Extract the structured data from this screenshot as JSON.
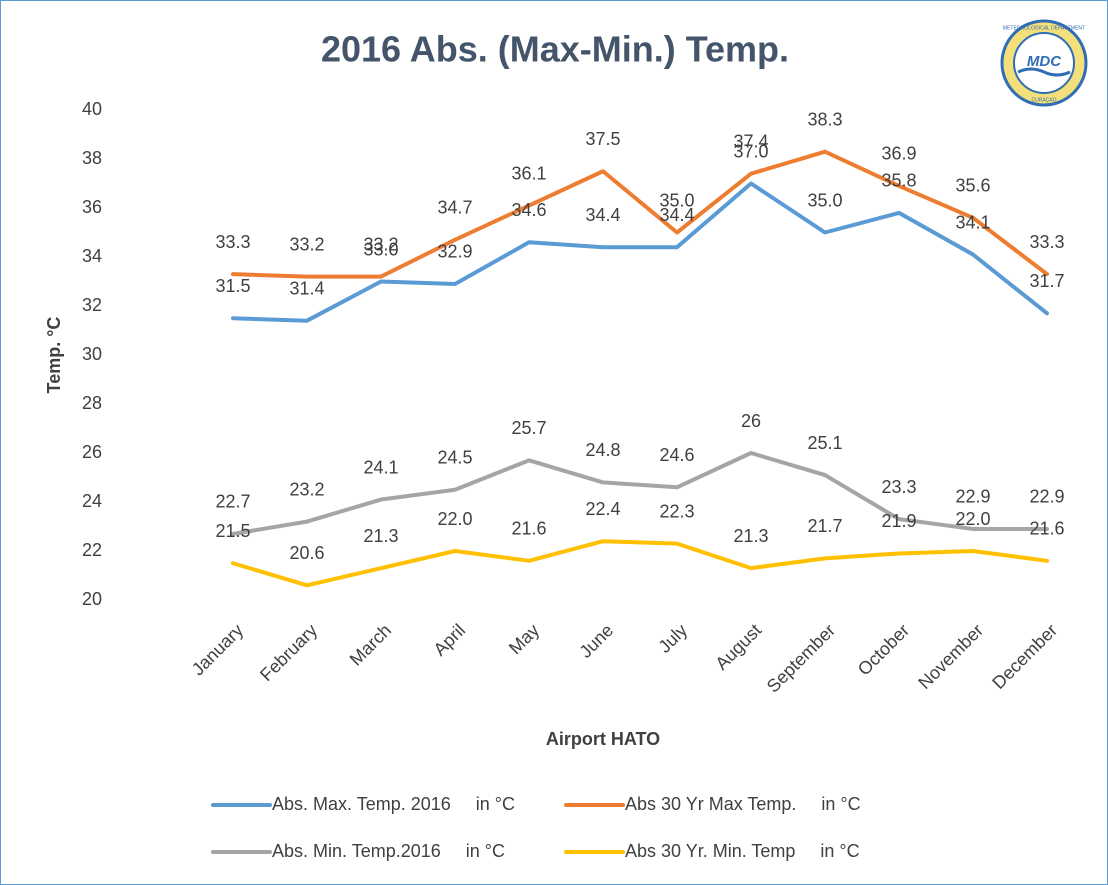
{
  "chart_data": {
    "type": "line",
    "title": "2016 Abs. (Max-Min.) Temp.",
    "x_label": "Airport HATO",
    "y_label": "Temp. °C",
    "logo": {
      "text": "MDC",
      "ring_top": "METEOROLOGICAL DEPARTMENT",
      "ring_bottom": "CURAÇAO"
    },
    "categories": [
      "January",
      "February",
      "March",
      "April",
      "May",
      "June",
      "July",
      "August",
      "September",
      "October",
      "November",
      "December"
    ],
    "ylim": [
      20,
      40
    ],
    "yticks": [
      20,
      22,
      24,
      26,
      28,
      30,
      32,
      34,
      36,
      38,
      40
    ],
    "grid": false,
    "legend": "bottom",
    "series": [
      {
        "name": "Abs. Max. Temp. 2016     in °C",
        "color": "#5b9bd5",
        "values": [
          31.5,
          31.4,
          33.0,
          32.9,
          34.6,
          34.4,
          34.4,
          37.0,
          35.0,
          35.8,
          34.1,
          31.7
        ],
        "value_labels": [
          "31.5",
          "31.4",
          "33.0",
          "32.9",
          "34.6",
          "34.4",
          "34.4",
          "37.0",
          "35.0",
          "35.8",
          "34.1",
          "31.7"
        ]
      },
      {
        "name": "Abs 30 Yr Max Temp.     in °C",
        "color": "#ed7d31",
        "values": [
          33.3,
          33.2,
          33.2,
          34.7,
          36.1,
          37.5,
          35.0,
          37.4,
          38.3,
          36.9,
          35.6,
          33.3
        ],
        "value_labels": [
          "33.3",
          "33.2",
          "33.2",
          "34.7",
          "36.1",
          "37.5",
          "35.0",
          "37.4",
          "38.3",
          "36.9",
          "35.6",
          "33.3"
        ]
      },
      {
        "name": "Abs. Min. Temp.2016     in °C",
        "color": "#a5a5a5",
        "values": [
          22.7,
          23.2,
          24.1,
          24.5,
          25.7,
          24.8,
          24.6,
          26,
          25.1,
          23.3,
          22.9,
          22.9
        ],
        "value_labels": [
          "22.7",
          "23.2",
          "24.1",
          "24.5",
          "25.7",
          "24.8",
          "24.6",
          "26",
          "25.1",
          "23.3",
          "22.9",
          "22.9"
        ]
      },
      {
        "name": "Abs 30 Yr. Min. Temp     in °C",
        "color": "#ffc000",
        "values": [
          21.5,
          20.6,
          21.3,
          22.0,
          21.6,
          22.4,
          22.3,
          21.3,
          21.7,
          21.9,
          22.0,
          21.6
        ],
        "value_labels": [
          "21.5",
          "20.6",
          "21.3",
          "22.0",
          "21.6",
          "22.4",
          "22.3",
          "21.3",
          "21.7",
          "21.9",
          "22.0",
          "21.6"
        ]
      }
    ]
  }
}
